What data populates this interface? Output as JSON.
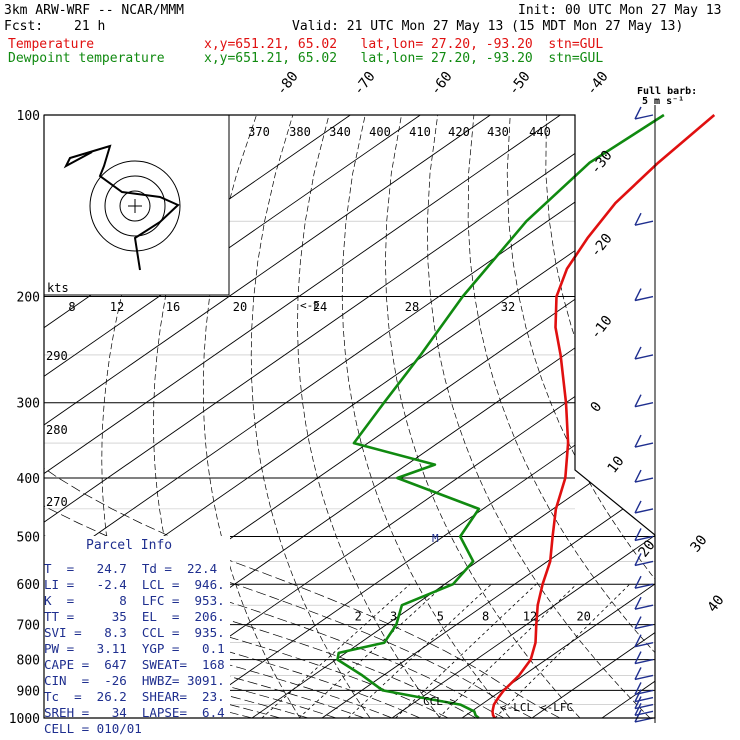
{
  "header": {
    "model": "3km ARW-WRF -- NCAR/MMM",
    "init": "Init: 00 UTC Mon 27 May 13",
    "fcst_label": "Fcst:",
    "fcst_value": "21 h",
    "valid": "Valid: 21 UTC Mon 27 May 13 (15 MDT Mon 27 May 13)",
    "temp_label": "Temperature",
    "temp_loc": "x,y=651.21, 65.02   lat,lon= 27.20, -93.20  stn=GUL",
    "dew_label": "Dewpoint temperature",
    "dew_loc": "x,y=651.21, 65.02   lat,lon= 27.20, -93.20  stn=GUL"
  },
  "barb_legend": {
    "title": "Full barb:",
    "value": "5 m s⁻¹"
  },
  "parcel_info": {
    "title": "Parcel Info",
    "rows": [
      "T  =   24.7  Td =  22.4",
      "LI =   -2.4  LCL =  946.",
      "K  =      8  LFC =  953.",
      "TT =     35  EL  =  206.",
      "SVI =   8.3  CCL =  935.",
      "PW =   3.11  YGP =   0.1",
      "CAPE =  647  SWEAT=  168",
      "CIN  =  -26  HWBZ= 3091.",
      "Tc  =  26.2  SHEAR=  23.",
      "SREH =   34  LAPSE=  6.4",
      "CELL = 010/01"
    ]
  },
  "chart_data": {
    "type": "line",
    "title": "",
    "pressure_axis": {
      "ticks": [
        100,
        200,
        300,
        400,
        500,
        600,
        700,
        800,
        900,
        1000
      ],
      "tick_labels": [
        "100",
        "200",
        "300",
        "400",
        "500",
        "600",
        "700",
        "800",
        "900",
        "1000"
      ],
      "scale": "log"
    },
    "isotherm_labels": [
      "-80",
      "-70",
      "-60",
      "-50",
      "-40",
      "-30",
      "-20",
      "-10",
      "0",
      "10",
      "20",
      "30",
      "40"
    ],
    "dry_adiabat_labels": [
      "370",
      "380",
      "340",
      "400",
      "410",
      "420",
      "430",
      "440"
    ],
    "mixing_ratio_labels": [
      "2",
      "3",
      "5",
      "8",
      "12",
      "20"
    ],
    "hodograph": {
      "label_kts": "kts",
      "speed_labels": [
        "8",
        "12",
        "16",
        "20",
        "24",
        "28",
        "32"
      ],
      "theta_labels": [
        "290",
        "280",
        "270"
      ],
      "partial_label": "<-E"
    },
    "levels_marked": {
      "lcl": "LCL",
      "lfc": "LFC",
      "ccl": "CCL",
      "m": "M"
    },
    "series": [
      {
        "name": "Temperature",
        "color": "#e01010",
        "points": [
          [
            1000,
            24.7
          ],
          [
            990,
            23.9
          ],
          [
            975,
            23.0
          ],
          [
            950,
            21.8
          ],
          [
            925,
            21.0
          ],
          [
            900,
            20.3
          ],
          [
            850,
            19.4
          ],
          [
            800,
            17.8
          ],
          [
            750,
            15.0
          ],
          [
            700,
            11.4
          ],
          [
            650,
            7.6
          ],
          [
            600,
            4.0
          ],
          [
            550,
            0.4
          ],
          [
            500,
            -4.4
          ],
          [
            450,
            -9.6
          ],
          [
            400,
            -14.6
          ],
          [
            350,
            -21.4
          ],
          [
            300,
            -30.0
          ],
          [
            250,
            -40.6
          ],
          [
            225,
            -47.0
          ],
          [
            200,
            -53.2
          ],
          [
            180,
            -57.4
          ],
          [
            160,
            -60.8
          ],
          [
            140,
            -64.0
          ],
          [
            120,
            -66.2
          ],
          [
            100,
            -68.0
          ]
        ]
      },
      {
        "name": "Dewpoint temperature",
        "color": "#108a10",
        "points": [
          [
            1000,
            22.4
          ],
          [
            990,
            21.4
          ],
          [
            975,
            20.4
          ],
          [
            950,
            17.0
          ],
          [
            925,
            10.0
          ],
          [
            900,
            3.0
          ],
          [
            850,
            -3.0
          ],
          [
            800,
            -9.8
          ],
          [
            780,
            -11.0
          ],
          [
            750,
            -6.6
          ],
          [
            700,
            -8.6
          ],
          [
            650,
            -11.8
          ],
          [
            600,
            -8.8
          ],
          [
            550,
            -10.6
          ],
          [
            500,
            -17.6
          ],
          [
            450,
            -20.6
          ],
          [
            400,
            -38.6
          ],
          [
            380,
            -36.0
          ],
          [
            350,
            -52.0
          ],
          [
            300,
            -56.0
          ],
          [
            250,
            -60.6
          ],
          [
            200,
            -66.6
          ],
          [
            150,
            -73.0
          ],
          [
            120,
            -76.0
          ],
          [
            100,
            -75.2
          ]
        ]
      }
    ],
    "wind_barbs_pressures": [
      1000,
      975,
      950,
      925,
      900,
      850,
      800,
      750,
      700,
      650,
      600,
      550,
      500,
      450,
      400,
      350,
      300,
      250,
      200,
      150,
      100
    ]
  }
}
